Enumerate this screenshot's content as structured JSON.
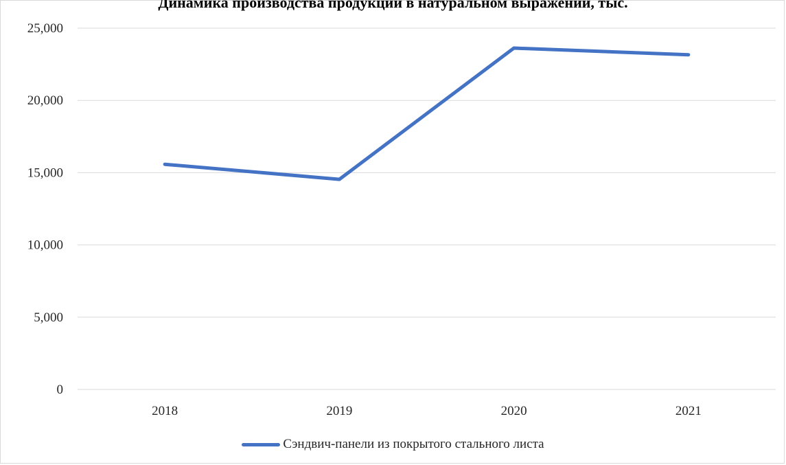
{
  "chart_data": {
    "type": "line",
    "title": "Динамика производства продукции в натуральном выражении, тыс.",
    "xlabel": "",
    "ylabel": "",
    "categories": [
      "2018",
      "2019",
      "2020",
      "2021"
    ],
    "series": [
      {
        "name": "Сэндвич-панели из покрытого стального листа",
        "values": [
          15580,
          14540,
          23620,
          23160
        ],
        "color": "#4472c4"
      }
    ],
    "ylim": [
      0,
      25000
    ],
    "yticks": [
      "0",
      "5,000",
      "10,000",
      "15,000",
      "20,000",
      "25,000"
    ],
    "ytick_values": [
      0,
      5000,
      10000,
      15000,
      20000,
      25000
    ],
    "grid": true,
    "legend_position": "bottom"
  }
}
